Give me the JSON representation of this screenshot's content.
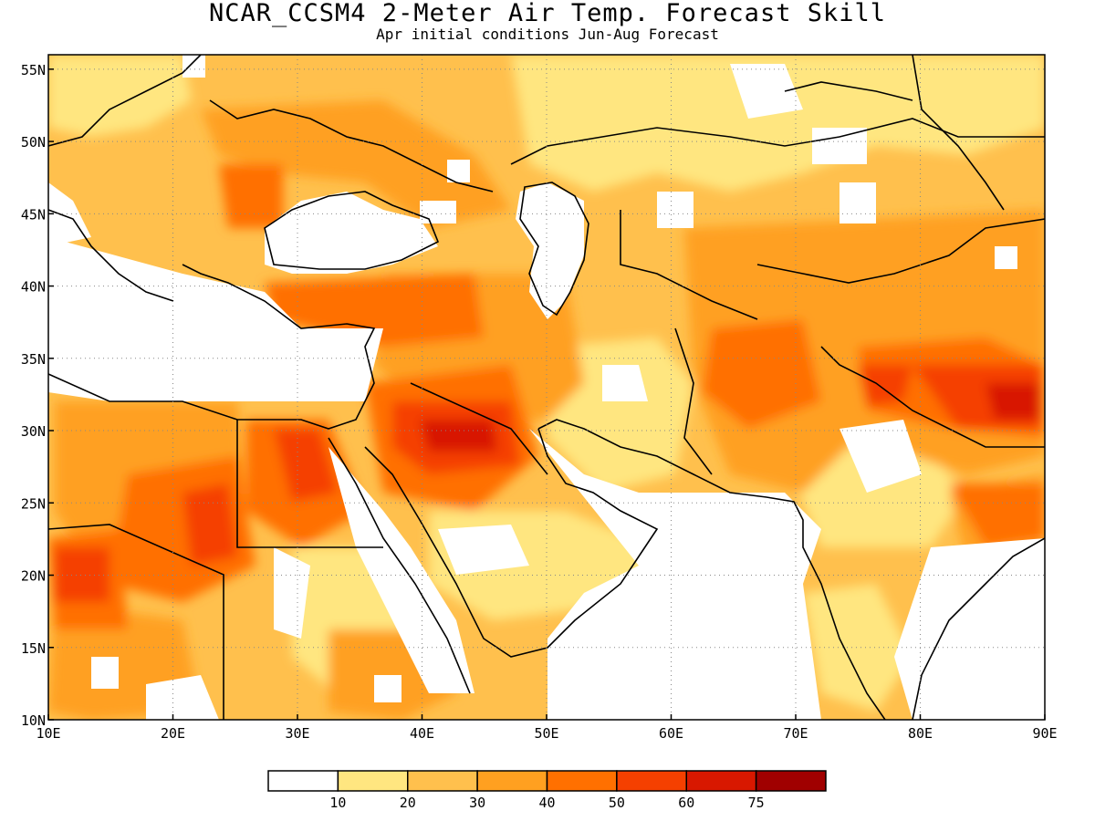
{
  "title": "NCAR_CCSM4 2-Meter Air Temp. Forecast Skill",
  "subtitle": "Apr initial conditions  Jun-Aug Forecast",
  "map": {
    "lon_range": [
      10,
      90
    ],
    "lat_range": [
      10,
      56
    ],
    "lon_ticks": [
      {
        "value": 10,
        "label": "10E"
      },
      {
        "value": 20,
        "label": "20E"
      },
      {
        "value": 30,
        "label": "30E"
      },
      {
        "value": 40,
        "label": "40E"
      },
      {
        "value": 50,
        "label": "50E"
      },
      {
        "value": 60,
        "label": "60E"
      },
      {
        "value": 70,
        "label": "70E"
      },
      {
        "value": 80,
        "label": "80E"
      },
      {
        "value": 90,
        "label": "90E"
      }
    ],
    "lat_ticks": [
      {
        "value": 10,
        "label": "10N"
      },
      {
        "value": 15,
        "label": "15N"
      },
      {
        "value": 20,
        "label": "20N"
      },
      {
        "value": 25,
        "label": "25N"
      },
      {
        "value": 30,
        "label": "30N"
      },
      {
        "value": 35,
        "label": "35N"
      },
      {
        "value": 40,
        "label": "40N"
      },
      {
        "value": 45,
        "label": "45N"
      },
      {
        "value": 50,
        "label": "50N"
      },
      {
        "value": 55,
        "label": "55N"
      }
    ],
    "grid": "dotted"
  },
  "colorbar": {
    "colors": [
      "#ffffff",
      "#ffe680",
      "#ffc04d",
      "#ffa020",
      "#ff7000",
      "#f54000",
      "#d81800",
      "#a00000"
    ],
    "labels": [
      "10",
      "20",
      "30",
      "40",
      "50",
      "60",
      "75"
    ]
  }
}
